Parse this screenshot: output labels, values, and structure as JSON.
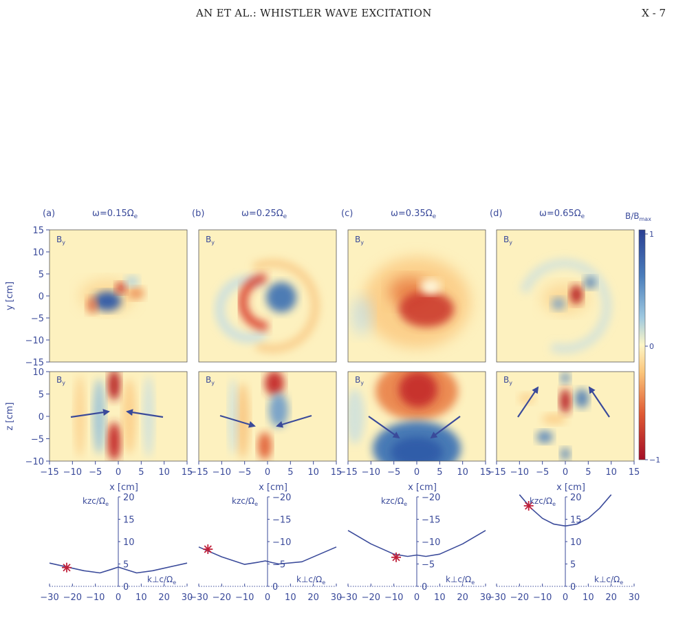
{
  "header": {
    "title": "AN ET AL.:  WHISTLER WAVE EXCITATION",
    "page": "X - 7"
  },
  "panels": [
    {
      "letter": "(a)",
      "omega": "ω=0.15Ω",
      "sub": "e",
      "star_kperp": -22.5,
      "star_kz": 4.2
    },
    {
      "letter": "(b)",
      "omega": "ω=0.25Ω",
      "sub": "e",
      "star_kperp": -26,
      "star_kz": 8.3
    },
    {
      "letter": "(c)",
      "omega": "ω=0.35Ω",
      "sub": "e",
      "star_kperp": -9,
      "star_kz": 6.5
    },
    {
      "letter": "(d)",
      "omega": "ω=0.65Ω",
      "sub": "e",
      "star_kperp": -16,
      "star_kz": 18
    }
  ],
  "field_label": "B",
  "field_sub": "y",
  "ylabel_top": "y [cm]",
  "ylabel_mid": "z [cm]",
  "xlabel": "x [cm]",
  "k_perp_label": "k⊥c/Ω",
  "k_z_label": "kzc/Ω",
  "k_sub": "e",
  "colorbar": {
    "label": "B/B",
    "label_sub": "max",
    "ticks": [
      "1",
      "0",
      "−1"
    ]
  },
  "chart_data": [
    {
      "type": "heatmap",
      "title": "ω=0.15Ωe",
      "ylabel": "y [cm]",
      "xlim": [
        -15,
        15
      ],
      "ylim": [
        -15,
        15
      ],
      "xticks": [
        -15,
        -10,
        -5,
        0,
        5,
        10,
        15
      ],
      "yticks": [
        15,
        10,
        5,
        0,
        -5,
        -10,
        -15
      ],
      "clim": [
        -1,
        1
      ]
    },
    {
      "type": "heatmap",
      "xlabel": "x [cm]",
      "ylabel": "z [cm]",
      "xlim": [
        -15,
        15
      ],
      "ylim": [
        -10,
        10
      ],
      "xticks": [
        -15,
        -10,
        -5,
        0,
        5,
        10,
        15
      ],
      "yticks": [
        10,
        5,
        0,
        -5,
        -10
      ]
    },
    {
      "type": "line",
      "xlabel": "k⊥c/Ωe",
      "ylabel": "kzc/Ωe",
      "xlim": [
        -30,
        30
      ],
      "ylim": [
        0,
        20
      ],
      "xticks": [
        -30,
        -20,
        -10,
        0,
        10,
        20,
        30
      ],
      "yticks": [
        0,
        5,
        10,
        15,
        20
      ],
      "series": [
        {
          "values": [
            [
              -30,
              5.2
            ],
            [
              -15,
              3.5
            ],
            [
              -8,
              3.0
            ],
            [
              -3,
              3.8
            ],
            [
              0,
              4.3
            ],
            [
              3,
              3.8
            ],
            [
              8,
              3.0
            ],
            [
              15,
              3.5
            ],
            [
              30,
              5.2
            ]
          ]
        },
        {
          "values": [
            [
              -30,
              8.8
            ],
            [
              -20,
              6.6
            ],
            [
              -10,
              4.9
            ],
            [
              -4,
              5.4
            ],
            [
              -1,
              5.7
            ],
            [
              2,
              5.3
            ],
            [
              5,
              5.0
            ],
            [
              15,
              5.5
            ],
            [
              30,
              8.8
            ]
          ]
        },
        {
          "values": [
            [
              -30,
              12.5
            ],
            [
              -20,
              9.5
            ],
            [
              -10,
              7.2
            ],
            [
              -4,
              6.7
            ],
            [
              0,
              7.0
            ],
            [
              4,
              6.7
            ],
            [
              10,
              7.2
            ],
            [
              20,
              9.5
            ],
            [
              30,
              12.5
            ]
          ]
        },
        {
          "values": [
            [
              -20,
              20.5
            ],
            [
              -15,
              17.5
            ],
            [
              -10,
              15.2
            ],
            [
              -5,
              13.9
            ],
            [
              0,
              13.5
            ],
            [
              5,
              13.9
            ],
            [
              10,
              15.2
            ],
            [
              15,
              17.5
            ],
            [
              20,
              20.5
            ]
          ]
        }
      ]
    }
  ]
}
